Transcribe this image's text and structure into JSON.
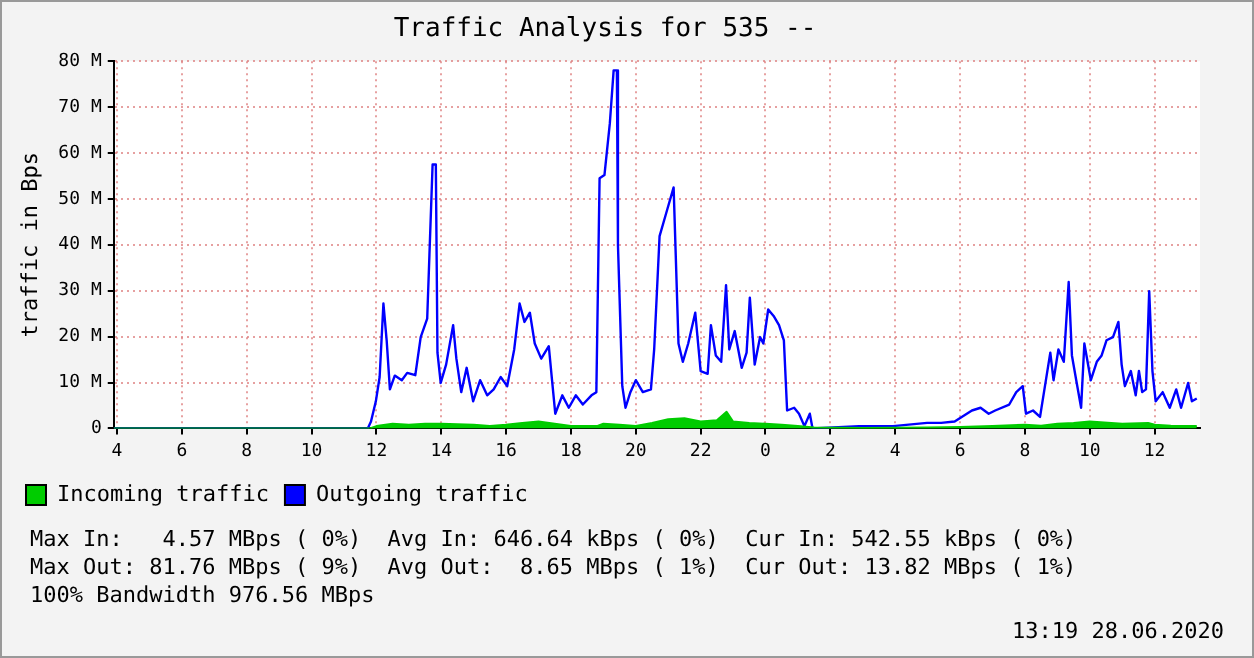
{
  "chart_data": {
    "type": "line",
    "title": "Traffic Analysis for 535 --",
    "ylabel": "traffic in Bps",
    "xlim": [
      "2020-06-27T03:54",
      "2020-06-28T13:24"
    ],
    "xticks": [
      {
        "value": "2020-06-27T04:00",
        "label": "4"
      },
      {
        "value": "2020-06-27T06:00",
        "label": "6"
      },
      {
        "value": "2020-06-27T08:00",
        "label": "8"
      },
      {
        "value": "2020-06-27T10:00",
        "label": "10"
      },
      {
        "value": "2020-06-27T12:00",
        "label": "12"
      },
      {
        "value": "2020-06-27T14:00",
        "label": "14"
      },
      {
        "value": "2020-06-27T16:00",
        "label": "16"
      },
      {
        "value": "2020-06-27T18:00",
        "label": "18"
      },
      {
        "value": "2020-06-27T20:00",
        "label": "20"
      },
      {
        "value": "2020-06-27T22:00",
        "label": "22"
      },
      {
        "value": "2020-06-28T00:00",
        "label": "0"
      },
      {
        "value": "2020-06-28T02:00",
        "label": "2"
      },
      {
        "value": "2020-06-28T04:00",
        "label": "4"
      },
      {
        "value": "2020-06-28T06:00",
        "label": "6"
      },
      {
        "value": "2020-06-28T08:00",
        "label": "8"
      },
      {
        "value": "2020-06-28T10:00",
        "label": "10"
      },
      {
        "value": "2020-06-28T12:00",
        "label": "12"
      }
    ],
    "ylim": [
      0,
      80
    ],
    "yticks": [
      0,
      {
        "value": 10,
        "label": "10 M"
      },
      {
        "value": 20,
        "label": "20 M"
      },
      {
        "value": 30,
        "label": "30 M"
      },
      {
        "value": 40,
        "label": "40 M"
      },
      {
        "value": 50,
        "label": "50 M"
      },
      {
        "value": 60,
        "label": "60 M"
      },
      {
        "value": 70,
        "label": "70 M"
      },
      {
        "value": 80,
        "label": "80 M"
      }
    ],
    "grid": true,
    "legend": "bottom left",
    "series": [
      {
        "name": "Incoming traffic",
        "type": "area",
        "color": "#00cc00",
        "x": [
          "2020-06-27T03:54",
          "2020-06-27T11:48",
          "2020-06-27T12:00",
          "2020-06-27T12:30",
          "2020-06-27T13:00",
          "2020-06-27T13:30",
          "2020-06-27T14:00",
          "2020-06-27T15:00",
          "2020-06-27T15:30",
          "2020-06-27T16:00",
          "2020-06-27T16:30",
          "2020-06-27T17:00",
          "2020-06-27T17:30",
          "2020-06-27T18:00",
          "2020-06-27T18:48",
          "2020-06-27T19:00",
          "2020-06-27T19:30",
          "2020-06-27T20:00",
          "2020-06-27T20:30",
          "2020-06-27T21:00",
          "2020-06-27T21:30",
          "2020-06-27T22:00",
          "2020-06-27T22:30",
          "2020-06-27T22:48",
          "2020-06-27T23:00",
          "2020-06-27T23:30",
          "2020-06-28T00:00",
          "2020-06-28T00:30",
          "2020-06-28T01:00",
          "2020-06-28T01:30",
          "2020-06-28T03:00",
          "2020-06-28T05:00",
          "2020-06-28T06:00",
          "2020-06-28T07:00",
          "2020-06-28T08:00",
          "2020-06-28T08:30",
          "2020-06-28T09:00",
          "2020-06-28T09:30",
          "2020-06-28T10:00",
          "2020-06-28T11:00",
          "2020-06-28T11:48",
          "2020-06-28T12:00",
          "2020-06-28T12:30",
          "2020-06-28T13:18"
        ],
        "values": [
          0,
          0,
          0.5,
          1.0,
          0.8,
          1.0,
          1.0,
          0.8,
          0.5,
          0.8,
          1.2,
          1.5,
          1.0,
          0.5,
          0.5,
          1.0,
          0.8,
          0.5,
          1.2,
          2.0,
          2.2,
          1.5,
          1.8,
          3.6,
          1.5,
          1.2,
          1.0,
          0.8,
          0.5,
          0.2,
          0.1,
          0.2,
          0.3,
          0.5,
          0.8,
          0.6,
          1.0,
          1.2,
          1.5,
          1.0,
          1.2,
          0.8,
          0.6,
          0.5
        ]
      },
      {
        "name": "Outgoing traffic",
        "type": "line",
        "color": "#0000ff",
        "x": [
          "2020-06-27T03:54",
          "2020-06-27T11:44",
          "2020-06-27T11:50",
          "2020-06-27T11:59",
          "2020-06-27T12:06",
          "2020-06-27T12:13",
          "2020-06-27T12:19",
          "2020-06-27T12:25",
          "2020-06-27T12:34",
          "2020-06-27T12:47",
          "2020-06-27T12:57",
          "2020-06-27T13:12",
          "2020-06-27T13:22",
          "2020-06-27T13:34",
          "2020-06-27T13:44",
          "2020-06-27T13:50",
          "2020-06-27T13:53",
          "2020-06-27T13:59",
          "2020-06-27T14:09",
          "2020-06-27T14:22",
          "2020-06-27T14:28",
          "2020-06-27T14:37",
          "2020-06-27T14:47",
          "2020-06-27T14:59",
          "2020-06-27T15:12",
          "2020-06-27T15:25",
          "2020-06-27T15:37",
          "2020-06-27T15:50",
          "2020-06-27T16:02",
          "2020-06-27T16:15",
          "2020-06-27T16:25",
          "2020-06-27T16:34",
          "2020-06-27T16:44",
          "2020-06-27T16:53",
          "2020-06-27T17:05",
          "2020-06-27T17:19",
          "2020-06-27T17:25",
          "2020-06-27T17:31",
          "2020-06-27T17:44",
          "2020-06-27T17:56",
          "2020-06-27T18:09",
          "2020-06-27T18:22",
          "2020-06-27T18:38",
          "2020-06-27T18:47",
          "2020-06-27T18:53",
          "2020-06-27T19:02",
          "2020-06-27T19:12",
          "2020-06-27T19:19",
          "2020-06-27T19:25",
          "2020-06-27T19:27",
          "2020-06-27T19:35",
          "2020-06-27T19:41",
          "2020-06-27T19:50",
          "2020-06-27T20:00",
          "2020-06-27T20:13",
          "2020-06-27T20:28",
          "2020-06-27T20:34",
          "2020-06-27T20:44",
          "2020-06-27T20:57",
          "2020-06-27T21:10",
          "2020-06-27T21:19",
          "2020-06-27T21:27",
          "2020-06-27T21:37",
          "2020-06-27T21:50",
          "2020-06-27T22:00",
          "2020-06-27T22:13",
          "2020-06-27T22:19",
          "2020-06-27T22:28",
          "2020-06-27T22:38",
          "2020-06-27T22:47",
          "2020-06-27T22:53",
          "2020-06-27T23:03",
          "2020-06-27T23:16",
          "2020-06-27T23:25",
          "2020-06-27T23:31",
          "2020-06-27T23:40",
          "2020-06-27T23:50",
          "2020-06-27T23:56",
          "2020-06-28T00:05",
          "2020-06-28T00:15",
          "2020-06-28T00:25",
          "2020-06-28T00:34",
          "2020-06-28T00:40",
          "2020-06-28T00:53",
          "2020-06-28T01:02",
          "2020-06-28T01:12",
          "2020-06-28T01:22",
          "2020-06-28T01:27",
          "2020-06-28T02:53",
          "2020-06-28T03:56",
          "2020-06-28T04:59",
          "2020-06-28T05:25",
          "2020-06-28T05:50",
          "2020-06-28T06:22",
          "2020-06-28T06:38",
          "2020-06-28T06:53",
          "2020-06-28T07:05",
          "2020-06-28T07:31",
          "2020-06-28T07:44",
          "2020-06-28T07:56",
          "2020-06-28T08:02",
          "2020-06-28T08:15",
          "2020-06-28T08:28",
          "2020-06-28T08:47",
          "2020-06-28T08:53",
          "2020-06-28T09:02",
          "2020-06-28T09:12",
          "2020-06-28T09:21",
          "2020-06-28T09:27",
          "2020-06-28T09:35",
          "2020-06-28T09:44",
          "2020-06-28T09:50",
          "2020-06-28T10:02",
          "2020-06-28T10:13",
          "2020-06-28T10:22",
          "2020-06-28T10:31",
          "2020-06-28T10:43",
          "2020-06-28T10:53",
          "2020-06-28T10:59",
          "2020-06-28T11:05",
          "2020-06-28T11:16",
          "2020-06-28T11:25",
          "2020-06-28T11:31",
          "2020-06-28T11:37",
          "2020-06-28T11:44",
          "2020-06-28T11:50",
          "2020-06-28T11:56",
          "2020-06-28T12:02",
          "2020-06-28T12:15",
          "2020-06-28T12:28",
          "2020-06-28T12:40",
          "2020-06-28T12:49",
          "2020-06-28T13:02",
          "2020-06-28T13:09",
          "2020-06-28T13:18"
        ],
        "values": [
          0,
          0,
          1.5,
          5.9,
          11.2,
          27.2,
          19.2,
          8.5,
          11.5,
          10.5,
          12.1,
          11.6,
          19.9,
          23.9,
          57.5,
          57.5,
          16.5,
          9.9,
          13.9,
          22.5,
          15.2,
          7.9,
          13.2,
          5.9,
          10.5,
          7.2,
          8.5,
          11.2,
          9.2,
          17.2,
          27.2,
          23.2,
          25.2,
          18.5,
          15.2,
          17.9,
          10.5,
          3.2,
          7.2,
          4.5,
          7.2,
          5.2,
          7.2,
          7.9,
          54.5,
          55.2,
          66.5,
          78,
          78,
          39.9,
          9.2,
          4.5,
          7.9,
          10.5,
          7.9,
          8.5,
          17.2,
          41.9,
          47.2,
          52.5,
          18.5,
          14.5,
          18.5,
          25.2,
          12.5,
          11.9,
          22.5,
          15.9,
          14.5,
          31.2,
          17.2,
          21.2,
          13.2,
          16.5,
          28.5,
          13.9,
          19.9,
          18.5,
          25.9,
          24.5,
          22.5,
          19.2,
          3.9,
          4.5,
          3.2,
          0.5,
          3.2,
          0,
          0.5,
          0.5,
          1.2,
          1.2,
          1.5,
          3.9,
          4.5,
          3.2,
          3.9,
          5.2,
          7.9,
          9.2,
          3.2,
          3.9,
          2.5,
          16.5,
          10.5,
          17.2,
          14.5,
          31.9,
          15.9,
          10.5,
          4.5,
          18.5,
          10.5,
          14.5,
          15.9,
          19.2,
          19.9,
          23.2,
          13.9,
          9.2,
          12.5,
          7.2,
          12.5,
          7.9,
          8.5,
          29.9,
          12.5,
          5.9,
          7.9,
          4.5,
          8.5,
          4.5,
          9.9,
          5.9,
          6.5
        ]
      }
    ],
    "annotations": [
      "Max In:   4.57 MBps ( 0%)  Avg In: 646.64 kBps ( 0%)  Cur In: 542.55 kBps ( 0%)",
      "Max Out: 81.76 MBps ( 9%)  Avg Out:  8.65 MBps ( 1%)  Cur Out: 13.82 MBps ( 1%)",
      "100% Bandwidth 976.56 MBps",
      "13:19 28.06.2020"
    ]
  }
}
